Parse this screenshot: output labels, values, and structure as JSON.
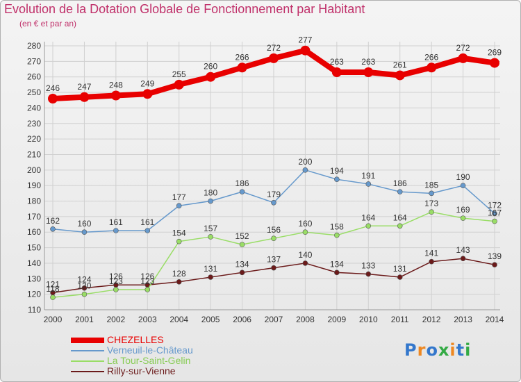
{
  "chart_data": {
    "type": "line",
    "title": "Evolution de la Dotation Globale de Fonctionnement par Habitant",
    "subtitle": "(en € et par an)",
    "x": [
      "2000",
      "2001",
      "2002",
      "2003",
      "2004",
      "2005",
      "2006",
      "2007",
      "2008",
      "2009",
      "2010",
      "2011",
      "2012",
      "2013",
      "2014"
    ],
    "ylim": [
      110,
      280
    ],
    "ytick_step": 10,
    "grid": true,
    "legend_position": "bottom-left",
    "series": [
      {
        "name": "CHEZELLES",
        "color": "#e80000",
        "values": [
          246,
          247,
          248,
          249,
          255,
          260,
          266,
          272,
          277,
          263,
          263,
          261,
          266,
          272,
          269
        ]
      },
      {
        "name": "Verneuil-le-Château",
        "color": "#6699cc",
        "values": [
          162,
          160,
          161,
          161,
          177,
          180,
          186,
          179,
          200,
          194,
          191,
          186,
          185,
          190,
          172
        ]
      },
      {
        "name": "La Tour-Saint-Gelin",
        "color": "#99dd66",
        "values": [
          118,
          120,
          123,
          123,
          154,
          157,
          152,
          156,
          160,
          158,
          164,
          164,
          173,
          169,
          167
        ]
      },
      {
        "name": "Rilly-sur-Vienne",
        "color": "#6b1a1a",
        "values": [
          121,
          124,
          126,
          126,
          128,
          131,
          134,
          137,
          140,
          134,
          133,
          131,
          141,
          143,
          139
        ]
      }
    ]
  },
  "logo": {
    "text": "Proxiti",
    "colors": [
      "#3377cc",
      "#ee8822",
      "#3377cc",
      "#33aa44",
      "#ee8822",
      "#3377cc",
      "#33aa44"
    ]
  }
}
